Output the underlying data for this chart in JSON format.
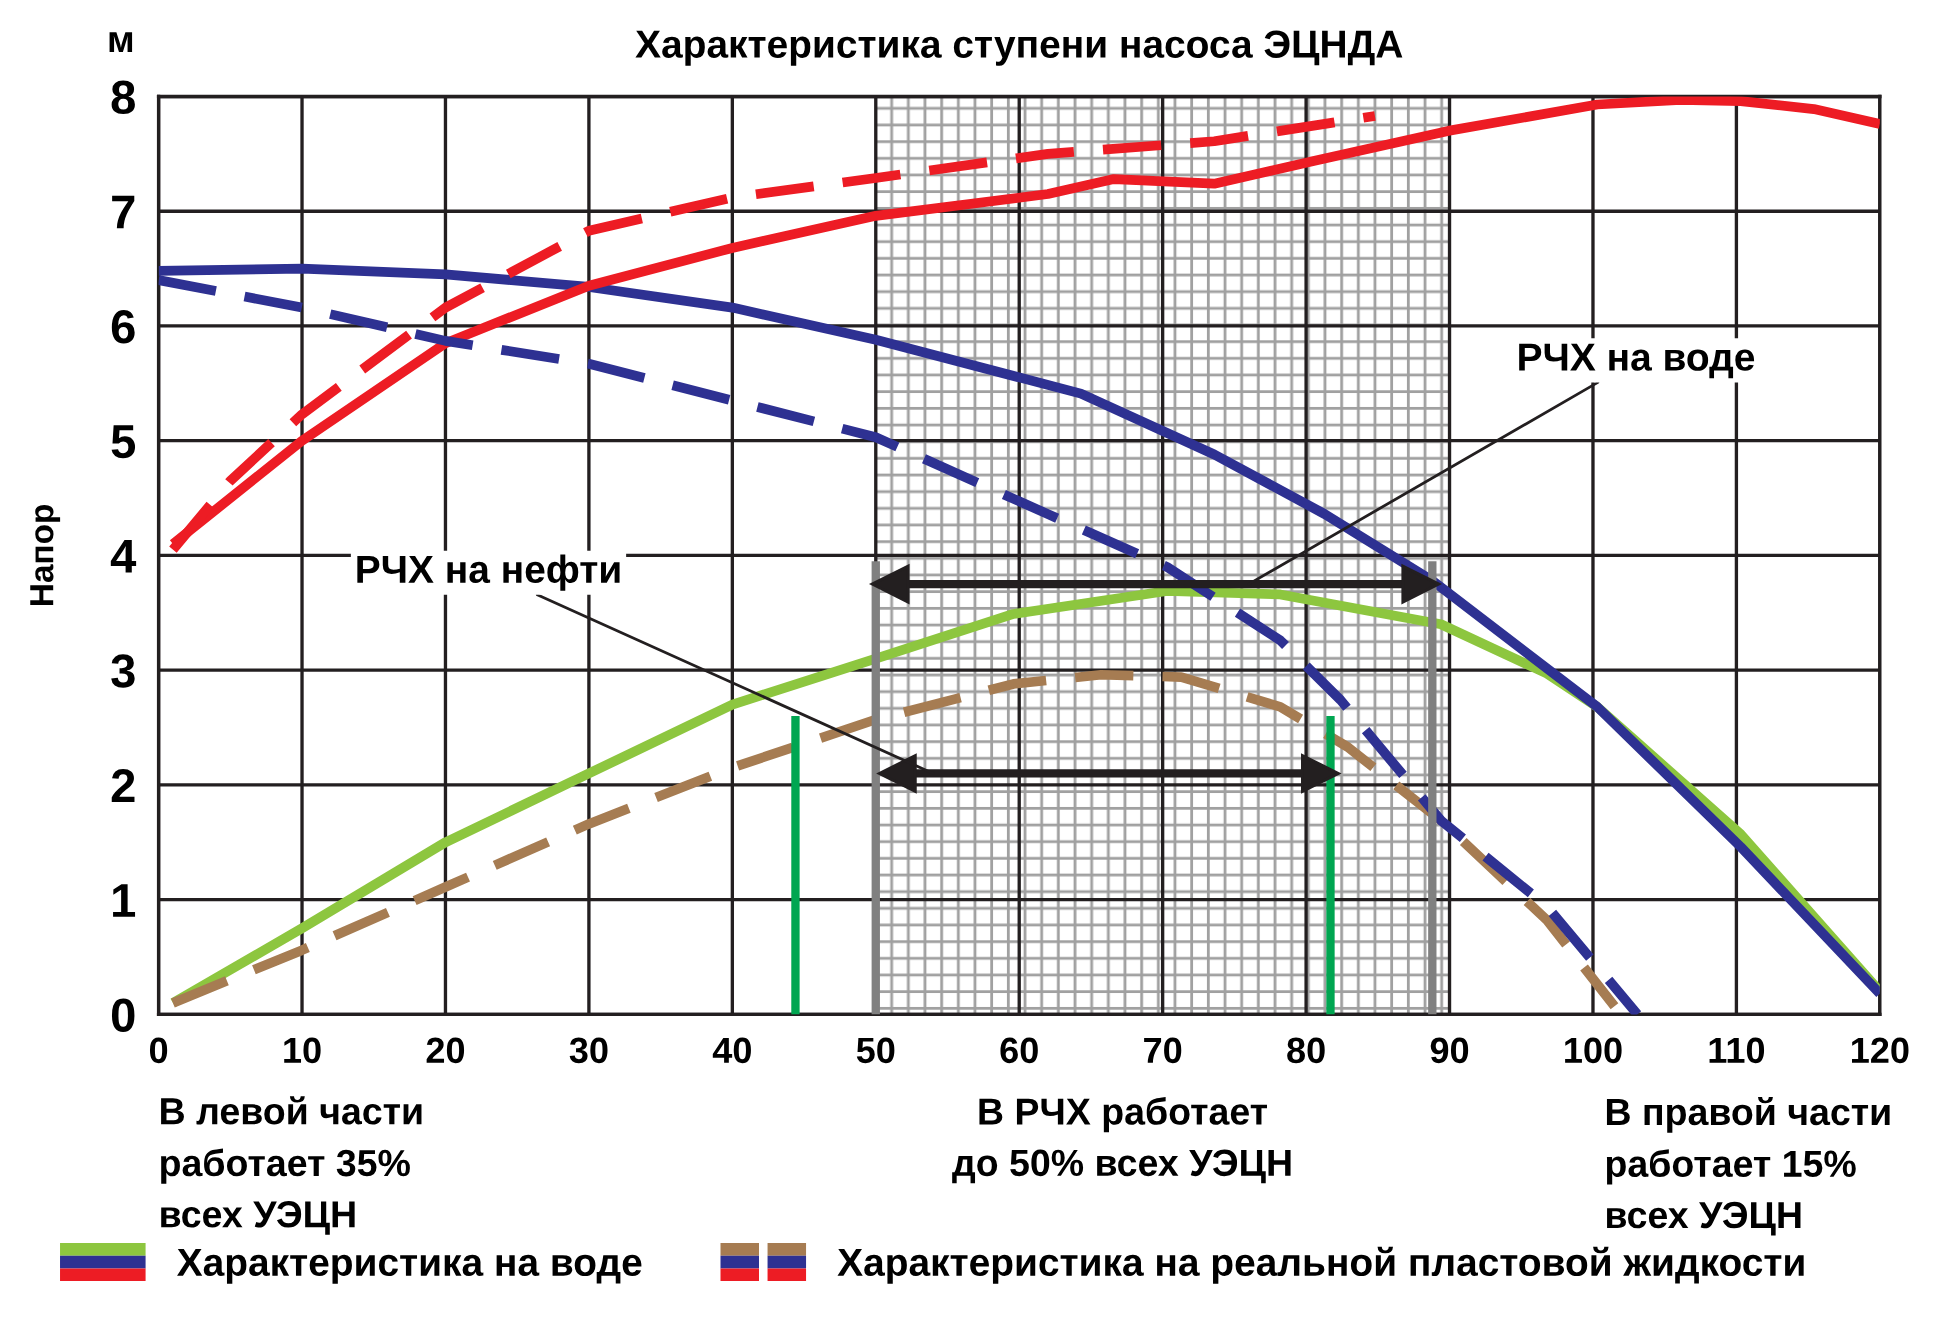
{
  "chart_data": {
    "type": "line",
    "title": "Характеристика ступени насоса ЭЦНДА",
    "ylabel": "Напор",
    "xlim": [
      0,
      120
    ],
    "ylim": [
      0,
      8
    ],
    "xticks": [
      0,
      10,
      20,
      30,
      40,
      50,
      60,
      70,
      80,
      90,
      100,
      110,
      120
    ],
    "yticks": [
      0,
      1,
      2,
      3,
      4,
      5,
      6,
      7,
      8
    ],
    "grid": true,
    "legend": "bottom",
    "marker": "none",
    "bands": [
      {
        "axis": "x",
        "from": 50,
        "to": 90,
        "color": "#a0a0a0"
      }
    ],
    "series": [
      {
        "name": "Характеристика на воде",
        "color": "#8dc63f",
        "line_style": "solid",
        "x": [
          1,
          10,
          20,
          30,
          40,
          50,
          59.6,
          70.3,
          78.2,
          89.4,
          96.8,
          100.3,
          110.3,
          120
        ],
        "values": [
          0.1,
          0.75,
          1.5,
          2.1,
          2.7,
          3.1,
          3.49,
          3.69,
          3.66,
          3.4,
          2.97,
          2.68,
          1.57,
          0.2
        ]
      },
      {
        "color": "#2e3192",
        "line_style": "solid",
        "x": [
          0,
          10,
          20,
          30,
          40,
          50,
          64.3,
          73.6,
          81.3,
          88.8,
          100.3,
          110.3,
          120
        ],
        "values": [
          6.48,
          6.5,
          6.45,
          6.34,
          6.16,
          5.88,
          5.41,
          4.88,
          4.36,
          3.78,
          2.68,
          1.46,
          0.18
        ]
      },
      {
        "color": "#ed1c24",
        "line_style": "solid",
        "x": [
          1,
          10,
          20,
          30,
          40,
          50,
          62,
          66.6,
          73.6,
          80.6,
          89.9,
          100.3,
          106.1,
          110.3,
          115.4,
          120
        ],
        "values": [
          4.1,
          5.0,
          5.85,
          6.35,
          6.68,
          6.96,
          7.15,
          7.28,
          7.24,
          7.44,
          7.7,
          7.93,
          7.97,
          7.96,
          7.89,
          7.76
        ]
      },
      {
        "name": "Характеристика на реальной пластовой жидкости",
        "color": "#a67c52",
        "line_style": "dashed",
        "x": [
          1,
          10,
          20,
          30,
          40,
          50,
          59.6,
          65.7,
          71.3,
          78.2,
          82.9,
          89.4,
          96.8,
          101.5
        ],
        "values": [
          0.1,
          0.56,
          1.11,
          1.66,
          2.15,
          2.57,
          2.88,
          2.96,
          2.94,
          2.68,
          2.33,
          1.69,
          0.82,
          0.07
        ]
      },
      {
        "color": "#2e3192",
        "line_style": "dashed",
        "x": [
          0,
          10,
          20,
          30,
          40,
          50,
          62,
          70.3,
          78.2,
          82.4,
          89.4,
          96.8,
          103.1
        ],
        "values": [
          6.4,
          6.16,
          5.87,
          5.67,
          5.35,
          5.03,
          4.36,
          3.9,
          3.26,
          2.74,
          1.69,
          0.94,
          0.0
        ]
      },
      {
        "color": "#ed1c24",
        "line_style": "dashed",
        "x": [
          1,
          5,
          10,
          20,
          30,
          40,
          50,
          62,
          73.6,
          84.8
        ],
        "values": [
          4.05,
          4.65,
          5.23,
          6.16,
          6.83,
          7.12,
          7.29,
          7.5,
          7.61,
          7.83
        ]
      },
      {
        "color": "#808080",
        "line_style": "solid",
        "x": [
          50,
          50
        ],
        "values": [
          0,
          3.95
        ]
      },
      {
        "color": "#808080",
        "line_style": "solid",
        "x": [
          88.8,
          88.8
        ],
        "values": [
          0,
          3.95
        ]
      },
      {
        "color": "#00a651",
        "line_style": "solid",
        "x": [
          44.4,
          44.4
        ],
        "values": [
          0,
          2.6
        ]
      },
      {
        "color": "#00a651",
        "line_style": "solid",
        "x": [
          81.7,
          81.7
        ],
        "values": [
          0,
          2.6
        ]
      },
      {
        "color": "#231f20",
        "line_style": "solid",
        "marker": "triangle",
        "x": [
          51,
          88
        ],
        "values": [
          3.75,
          3.75
        ]
      },
      {
        "color": "#231f20",
        "line_style": "solid",
        "marker": "triangle",
        "x": [
          51.5,
          81
        ],
        "values": [
          2.1,
          2.1
        ]
      }
    ],
    "annotations": [
      "м",
      {
        "text": "РЧХ на воде",
        "x": 76,
        "y": 3.75
      },
      {
        "text": "РЧХ на нефти",
        "x": 54,
        "y": 2.1
      },
      "В левой части\nработает 35%\nвсех УЭЦН",
      "В РЧХ работает\nдо 50% всех УЭЦН",
      "В правой части\nработает 15%\nвсех УЭЦН"
    ]
  }
}
